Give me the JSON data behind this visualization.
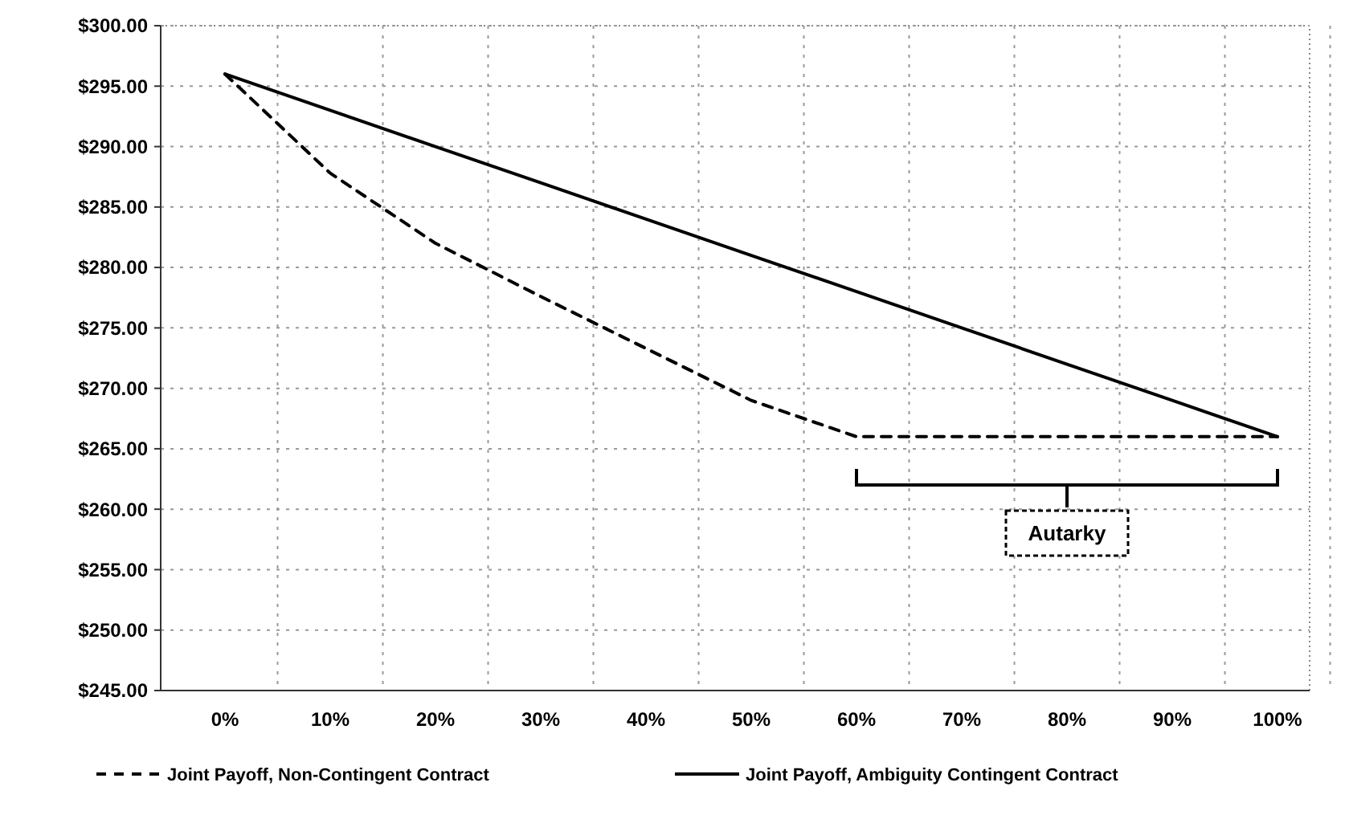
{
  "chart_data": {
    "type": "line",
    "categories": [
      "0%",
      "10%",
      "20%",
      "30%",
      "40%",
      "50%",
      "60%",
      "70%",
      "80%",
      "90%",
      "100%"
    ],
    "series": [
      {
        "name": "Joint Payoff, Non-Contingent Contract",
        "color": "#000000",
        "line_style": "dashed",
        "values": [
          296,
          287.8,
          282,
          277.6,
          273.3,
          269,
          266,
          266,
          266,
          266,
          266
        ]
      },
      {
        "name": "Joint Payoff, Ambiguity Contingent Contract",
        "color": "#000000",
        "line_style": "solid",
        "values": [
          296,
          293,
          290,
          287,
          284,
          281,
          278,
          275,
          272,
          269,
          266
        ]
      }
    ],
    "ylim": [
      245,
      300
    ],
    "yticks": [
      {
        "value": 245,
        "label": "$245.00"
      },
      {
        "value": 250,
        "label": "$250.00"
      },
      {
        "value": 255,
        "label": "$255.00"
      },
      {
        "value": 260,
        "label": "$260.00"
      },
      {
        "value": 265,
        "label": "$265.00"
      },
      {
        "value": 270,
        "label": "$270.00"
      },
      {
        "value": 275,
        "label": "$275.00"
      },
      {
        "value": 280,
        "label": "$280.00"
      },
      {
        "value": 285,
        "label": "$285.00"
      },
      {
        "value": 290,
        "label": "$290.00"
      },
      {
        "value": 295,
        "label": "$295.00"
      },
      {
        "value": 300,
        "label": "$300.00"
      }
    ],
    "grid": true,
    "legend": "bottom",
    "marker": "none",
    "annotations": [
      "Autarky"
    ]
  }
}
